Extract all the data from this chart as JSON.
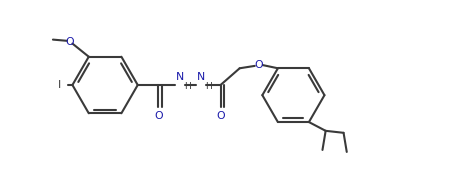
{
  "bg_color": "#ffffff",
  "lc": "#3a3a3a",
  "lw": 1.5,
  "figsize": [
    4.61,
    1.7
  ],
  "dpi": 100,
  "xlim": [
    0,
    10
  ],
  "ylim": [
    0,
    4.2
  ],
  "o_color": "#1a1aaa",
  "n_color": "#1a1aaa",
  "text_color": "#3a3a3a"
}
